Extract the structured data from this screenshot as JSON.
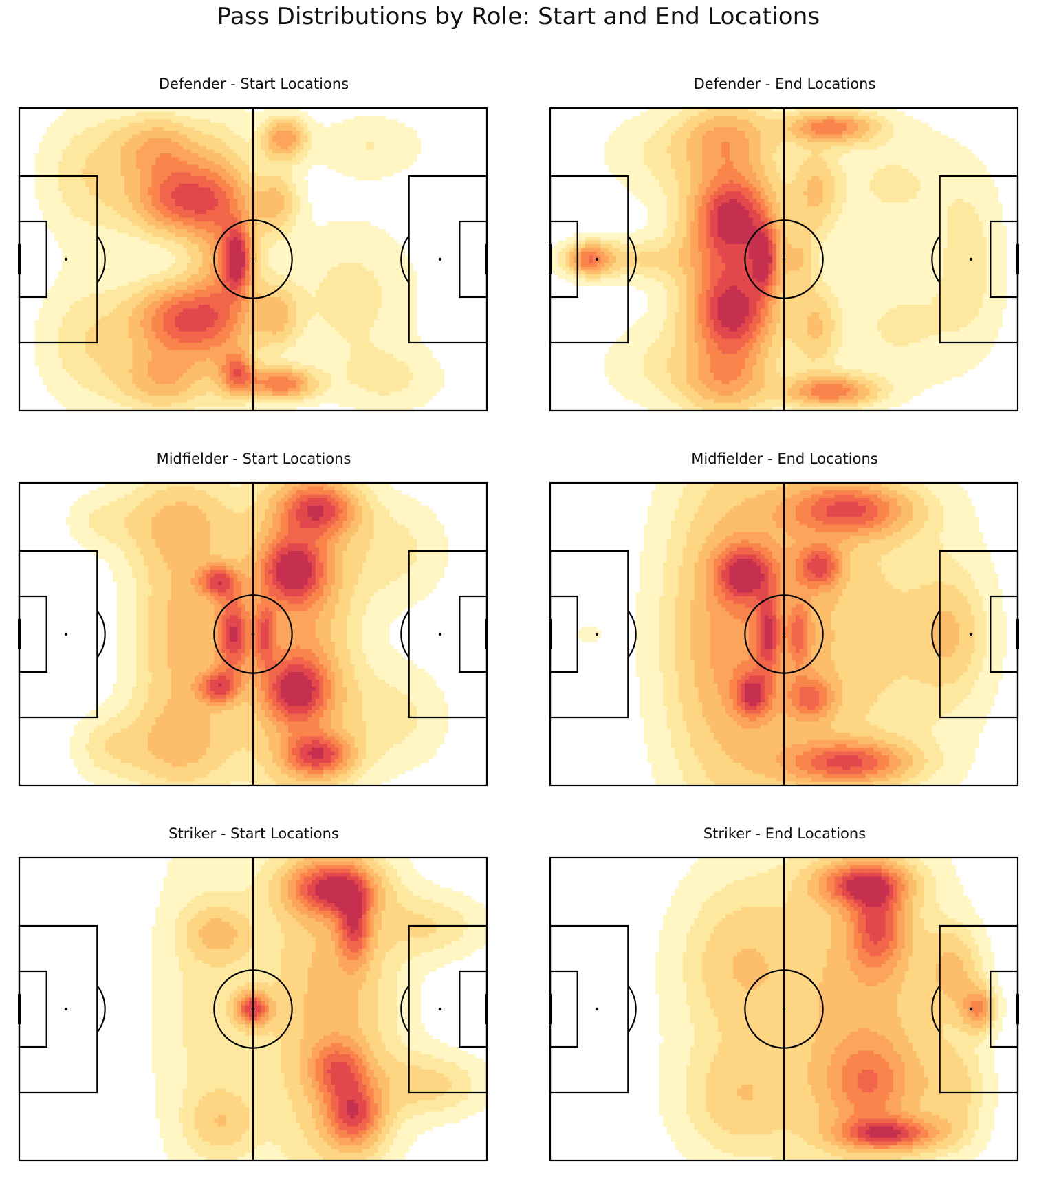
{
  "figure": {
    "title": "Pass Distributions by Role: Start and End Locations"
  },
  "colors": {
    "palette": [
      "#fff6c3",
      "#fee8a0",
      "#fed683",
      "#fdbe6c",
      "#fca45b",
      "#f9844c",
      "#f1654a",
      "#e2474c",
      "#c5304f"
    ],
    "pitch_line": "#000000",
    "spot": "#000000"
  },
  "chart_data": [
    {
      "type": "heatmap",
      "subtype": "kde-contour-on-pitch",
      "title": "Defender - Start Locations",
      "xlim": [
        0,
        120
      ],
      "ylim": [
        0,
        80
      ],
      "grid": false,
      "legend": "none",
      "hotspots": [
        {
          "x": 42,
          "y": 24,
          "w": 1.0,
          "sx": 9,
          "sy": 7
        },
        {
          "x": 42,
          "y": 56,
          "w": 1.0,
          "sx": 9,
          "sy": 7
        },
        {
          "x": 56,
          "y": 40,
          "w": 0.9,
          "sx": 2.5,
          "sy": 6
        },
        {
          "x": 67,
          "y": 73,
          "w": 0.85,
          "sx": 6,
          "sy": 3
        },
        {
          "x": 68,
          "y": 8,
          "w": 0.7,
          "sx": 4,
          "sy": 4
        },
        {
          "x": 56,
          "y": 70,
          "w": 0.7,
          "sx": 3,
          "sy": 4
        },
        {
          "x": 36,
          "y": 10,
          "w": 0.55,
          "sx": 8,
          "sy": 6
        },
        {
          "x": 37,
          "y": 72,
          "w": 0.55,
          "sx": 8,
          "sy": 6
        },
        {
          "x": 53,
          "y": 40,
          "w": 0.55,
          "sx": 6,
          "sy": 22
        },
        {
          "x": 66,
          "y": 25,
          "w": 0.45,
          "sx": 4,
          "sy": 6
        },
        {
          "x": 66,
          "y": 55,
          "w": 0.45,
          "sx": 4,
          "sy": 6
        },
        {
          "x": 18,
          "y": 18,
          "w": 0.3,
          "sx": 9,
          "sy": 12
        },
        {
          "x": 18,
          "y": 62,
          "w": 0.3,
          "sx": 9,
          "sy": 12
        },
        {
          "x": 85,
          "y": 50,
          "w": 0.25,
          "sx": 12,
          "sy": 14
        },
        {
          "x": 90,
          "y": 10,
          "w": 0.2,
          "sx": 10,
          "sy": 6
        },
        {
          "x": 95,
          "y": 72,
          "w": 0.2,
          "sx": 10,
          "sy": 6
        }
      ]
    },
    {
      "type": "heatmap",
      "subtype": "kde-contour-on-pitch",
      "title": "Defender - End Locations",
      "xlim": [
        0,
        120
      ],
      "ylim": [
        0,
        80
      ],
      "grid": false,
      "legend": "none",
      "hotspots": [
        {
          "x": 47,
          "y": 29,
          "w": 1.0,
          "sx": 7,
          "sy": 8
        },
        {
          "x": 47,
          "y": 54,
          "w": 1.0,
          "sx": 7,
          "sy": 8
        },
        {
          "x": 72,
          "y": 75,
          "w": 0.95,
          "sx": 8,
          "sy": 3
        },
        {
          "x": 72,
          "y": 5,
          "w": 0.9,
          "sx": 8,
          "sy": 3
        },
        {
          "x": 55,
          "y": 40,
          "w": 0.9,
          "sx": 2.5,
          "sy": 6
        },
        {
          "x": 10,
          "y": 40,
          "w": 0.8,
          "sx": 4,
          "sy": 3
        },
        {
          "x": 46,
          "y": 40,
          "w": 0.6,
          "sx": 10,
          "sy": 26
        },
        {
          "x": 45,
          "y": 8,
          "w": 0.5,
          "sx": 8,
          "sy": 6
        },
        {
          "x": 45,
          "y": 72,
          "w": 0.5,
          "sx": 8,
          "sy": 6
        },
        {
          "x": 68,
          "y": 22,
          "w": 0.45,
          "sx": 4,
          "sy": 8
        },
        {
          "x": 68,
          "y": 58,
          "w": 0.45,
          "sx": 4,
          "sy": 8
        },
        {
          "x": 64,
          "y": 40,
          "w": 0.35,
          "sx": 3,
          "sy": 5
        },
        {
          "x": 20,
          "y": 40,
          "w": 0.35,
          "sx": 12,
          "sy": 4
        },
        {
          "x": 90,
          "y": 58,
          "w": 0.25,
          "sx": 14,
          "sy": 12
        },
        {
          "x": 88,
          "y": 20,
          "w": 0.25,
          "sx": 14,
          "sy": 12
        },
        {
          "x": 108,
          "y": 40,
          "w": 0.25,
          "sx": 6,
          "sy": 14
        },
        {
          "x": 26,
          "y": 68,
          "w": 0.2,
          "sx": 10,
          "sy": 8
        },
        {
          "x": 26,
          "y": 12,
          "w": 0.2,
          "sx": 10,
          "sy": 8
        }
      ]
    },
    {
      "type": "heatmap",
      "subtype": "kde-contour-on-pitch",
      "title": "Midfielder - Start Locations",
      "xlim": [
        0,
        120
      ],
      "ylim": [
        0,
        80
      ],
      "grid": false,
      "legend": "none",
      "hotspots": [
        {
          "x": 77,
          "y": 7,
          "w": 0.9,
          "sx": 7,
          "sy": 5
        },
        {
          "x": 70,
          "y": 23,
          "w": 0.95,
          "sx": 6,
          "sy": 6
        },
        {
          "x": 71,
          "y": 55,
          "w": 0.9,
          "sx": 6,
          "sy": 6
        },
        {
          "x": 77,
          "y": 72,
          "w": 0.9,
          "sx": 6,
          "sy": 4
        },
        {
          "x": 55,
          "y": 40,
          "w": 0.95,
          "sx": 3,
          "sy": 8
        },
        {
          "x": 51,
          "y": 26,
          "w": 0.8,
          "sx": 3.5,
          "sy": 3
        },
        {
          "x": 51,
          "y": 54,
          "w": 0.8,
          "sx": 3.5,
          "sy": 3
        },
        {
          "x": 63,
          "y": 40,
          "w": 0.7,
          "sx": 2,
          "sy": 6
        },
        {
          "x": 72,
          "y": 40,
          "w": 0.65,
          "sx": 10,
          "sy": 34
        },
        {
          "x": 42,
          "y": 40,
          "w": 0.55,
          "sx": 9,
          "sy": 24
        },
        {
          "x": 40,
          "y": 10,
          "w": 0.35,
          "sx": 12,
          "sy": 8
        },
        {
          "x": 40,
          "y": 70,
          "w": 0.35,
          "sx": 12,
          "sy": 8
        },
        {
          "x": 96,
          "y": 18,
          "w": 0.25,
          "sx": 10,
          "sy": 10
        },
        {
          "x": 96,
          "y": 62,
          "w": 0.25,
          "sx": 10,
          "sy": 10
        },
        {
          "x": 22,
          "y": 70,
          "w": 0.2,
          "sx": 6,
          "sy": 6
        },
        {
          "x": 20,
          "y": 10,
          "w": 0.15,
          "sx": 6,
          "sy": 5
        }
      ]
    },
    {
      "type": "heatmap",
      "subtype": "kde-contour-on-pitch",
      "title": "Midfielder - End Locations",
      "xlim": [
        0,
        120
      ],
      "ylim": [
        0,
        80
      ],
      "grid": false,
      "legend": "none",
      "hotspots": [
        {
          "x": 77,
          "y": 7,
          "w": 1.0,
          "sx": 11,
          "sy": 5
        },
        {
          "x": 77,
          "y": 74,
          "w": 1.0,
          "sx": 11,
          "sy": 4
        },
        {
          "x": 50,
          "y": 24,
          "w": 0.95,
          "sx": 5,
          "sy": 5
        },
        {
          "x": 52,
          "y": 56,
          "w": 0.85,
          "sx": 3,
          "sy": 4
        },
        {
          "x": 69,
          "y": 22,
          "w": 0.85,
          "sx": 4,
          "sy": 4
        },
        {
          "x": 67,
          "y": 57,
          "w": 0.65,
          "sx": 4,
          "sy": 4
        },
        {
          "x": 56,
          "y": 40,
          "w": 0.75,
          "sx": 2,
          "sy": 7
        },
        {
          "x": 64,
          "y": 40,
          "w": 0.55,
          "sx": 2,
          "sy": 6
        },
        {
          "x": 60,
          "y": 40,
          "w": 0.6,
          "sx": 18,
          "sy": 38
        },
        {
          "x": 44,
          "y": 40,
          "w": 0.4,
          "sx": 10,
          "sy": 30
        },
        {
          "x": 103,
          "y": 40,
          "w": 0.35,
          "sx": 6,
          "sy": 10
        },
        {
          "x": 95,
          "y": 40,
          "w": 0.25,
          "sx": 14,
          "sy": 28
        },
        {
          "x": 10,
          "y": 40,
          "w": 0.15,
          "sx": 3,
          "sy": 2
        }
      ]
    },
    {
      "type": "heatmap",
      "subtype": "kde-contour-on-pitch",
      "title": "Striker - Start Locations",
      "xlim": [
        0,
        120
      ],
      "ylim": [
        0,
        80
      ],
      "grid": false,
      "legend": "none",
      "hotspots": [
        {
          "x": 80,
          "y": 8,
          "w": 1.0,
          "sx": 8,
          "sy": 5
        },
        {
          "x": 86,
          "y": 18,
          "w": 0.75,
          "sx": 3,
          "sy": 7
        },
        {
          "x": 60,
          "y": 40,
          "w": 1.0,
          "sx": 3,
          "sy": 3
        },
        {
          "x": 86,
          "y": 68,
          "w": 0.85,
          "sx": 5,
          "sy": 6
        },
        {
          "x": 82,
          "y": 56,
          "w": 0.6,
          "sx": 5,
          "sy": 5
        },
        {
          "x": 80,
          "y": 40,
          "w": 0.55,
          "sx": 12,
          "sy": 36
        },
        {
          "x": 51,
          "y": 20,
          "w": 0.35,
          "sx": 6,
          "sy": 5
        },
        {
          "x": 48,
          "y": 40,
          "w": 0.25,
          "sx": 10,
          "sy": 36
        },
        {
          "x": 106,
          "y": 60,
          "w": 0.35,
          "sx": 10,
          "sy": 6
        },
        {
          "x": 106,
          "y": 18,
          "w": 0.3,
          "sx": 10,
          "sy": 6
        },
        {
          "x": 52,
          "y": 70,
          "w": 0.3,
          "sx": 6,
          "sy": 6
        }
      ]
    },
    {
      "type": "heatmap",
      "subtype": "kde-contour-on-pitch",
      "title": "Striker - End Locations",
      "xlim": [
        0,
        120
      ],
      "ylim": [
        0,
        80
      ],
      "grid": false,
      "legend": "none",
      "hotspots": [
        {
          "x": 80,
          "y": 7,
          "w": 1.0,
          "sx": 8,
          "sy": 4
        },
        {
          "x": 84,
          "y": 18,
          "w": 0.8,
          "sx": 5,
          "sy": 8
        },
        {
          "x": 87,
          "y": 73,
          "w": 1.0,
          "sx": 9,
          "sy": 3
        },
        {
          "x": 82,
          "y": 60,
          "w": 0.55,
          "sx": 8,
          "sy": 8
        },
        {
          "x": 110,
          "y": 40,
          "w": 0.75,
          "sx": 3,
          "sy": 4
        },
        {
          "x": 104,
          "y": 30,
          "w": 0.45,
          "sx": 5,
          "sy": 8
        },
        {
          "x": 82,
          "y": 40,
          "w": 0.5,
          "sx": 14,
          "sy": 34
        },
        {
          "x": 48,
          "y": 28,
          "w": 0.35,
          "sx": 10,
          "sy": 14
        },
        {
          "x": 48,
          "y": 64,
          "w": 0.35,
          "sx": 10,
          "sy": 10
        },
        {
          "x": 104,
          "y": 62,
          "w": 0.35,
          "sx": 6,
          "sy": 10
        },
        {
          "x": 58,
          "y": 40,
          "w": 0.2,
          "sx": 20,
          "sy": 36
        }
      ]
    }
  ]
}
